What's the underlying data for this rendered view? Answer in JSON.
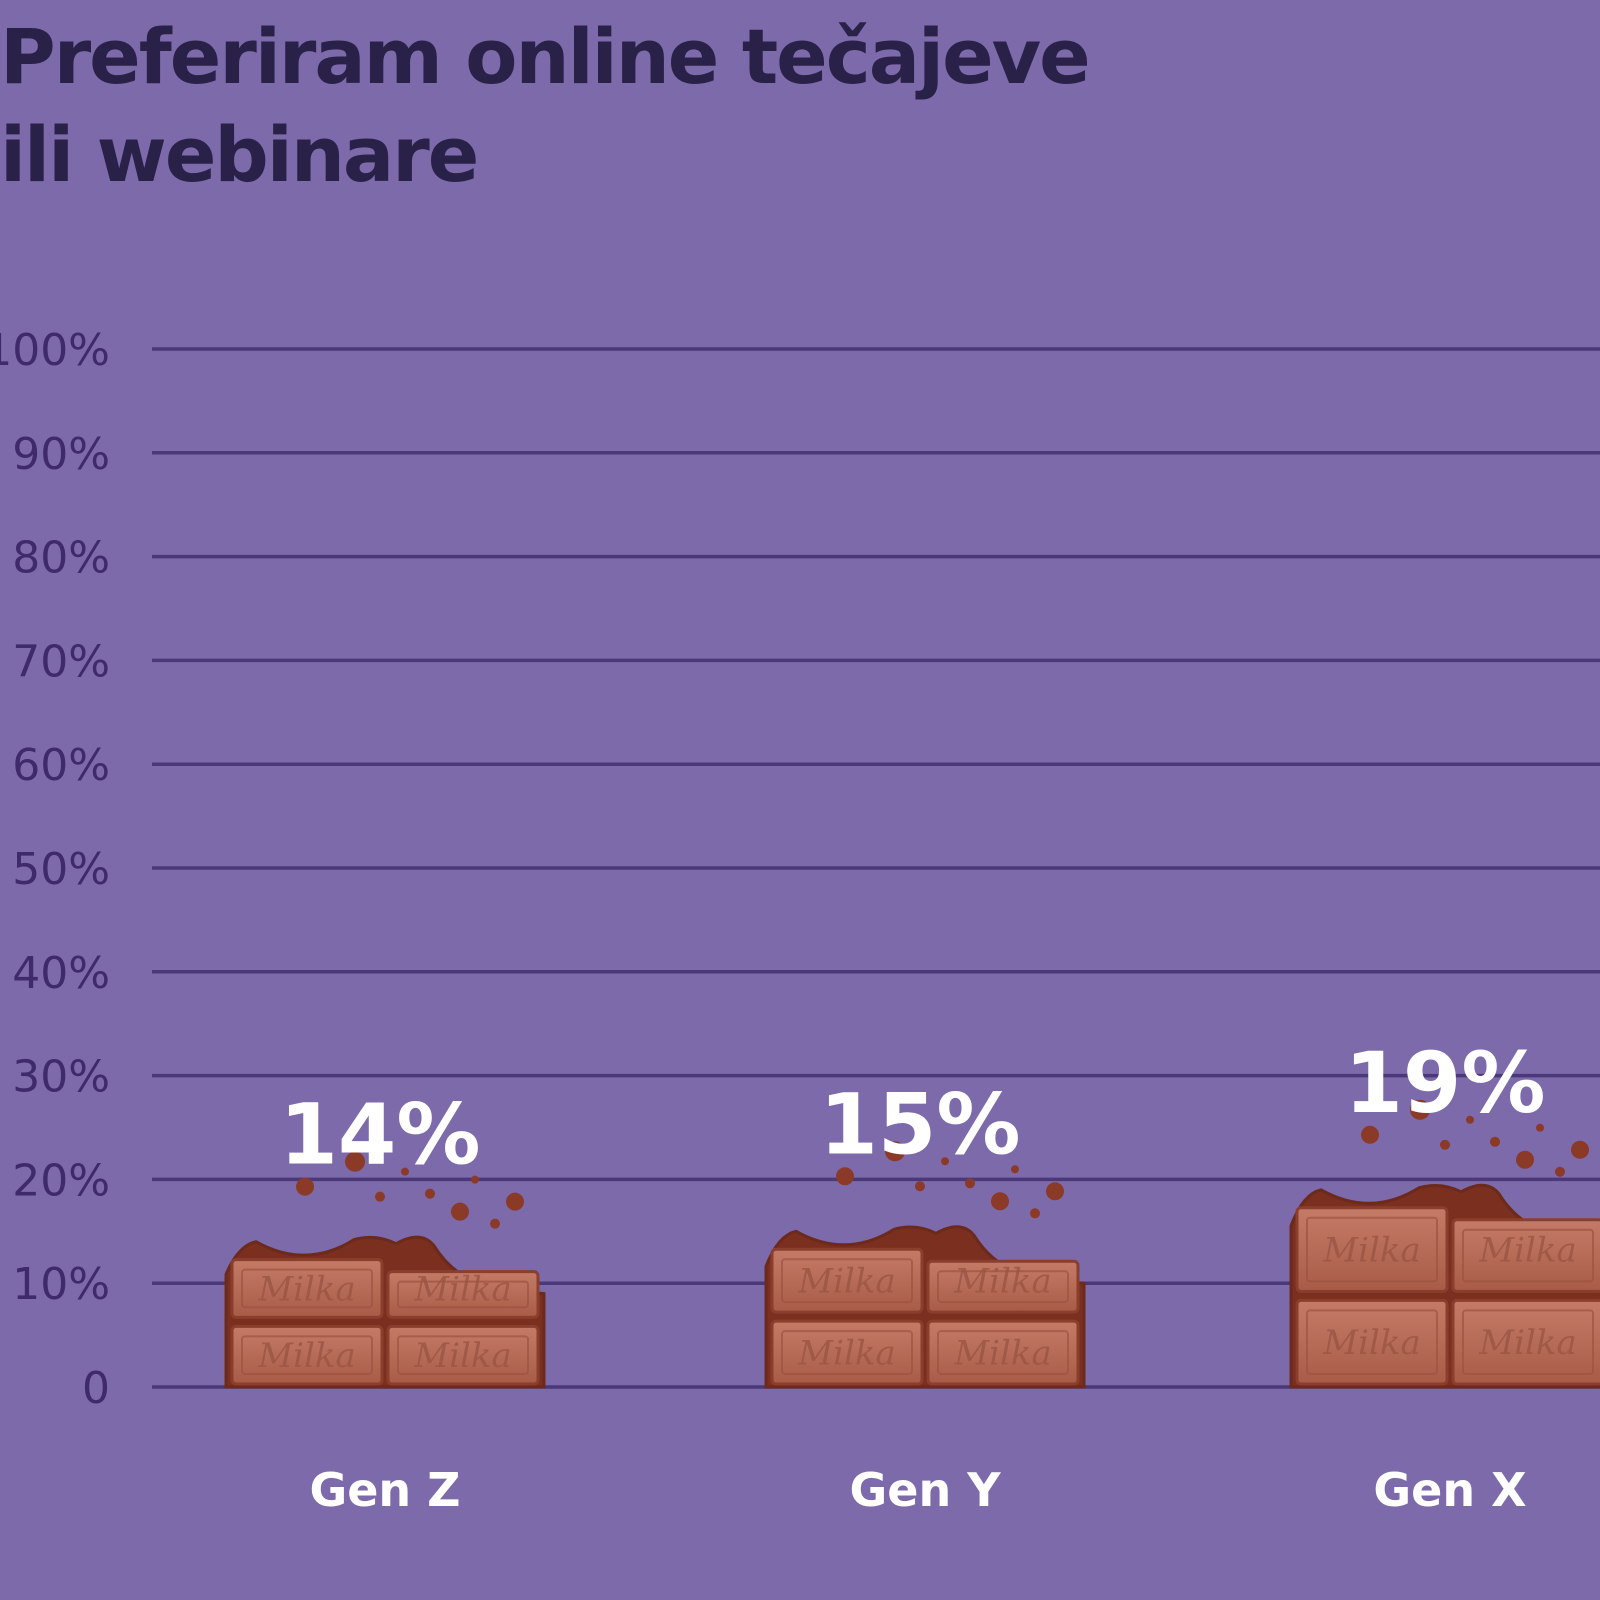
{
  "title_lines": [
    "Preferiram online tečajeve",
    "ili webinare"
  ],
  "chart_data": {
    "type": "bar",
    "title": "Preferiram online tečajeve ili webinare",
    "categories": [
      "Gen Z",
      "Gen Y",
      "Gen X"
    ],
    "values": [
      14,
      15,
      19
    ],
    "value_labels": [
      "14%",
      "15%",
      "19%"
    ],
    "ylim": [
      0,
      100
    ],
    "yticks": [
      0,
      10,
      20,
      30,
      40,
      50,
      60,
      70,
      80,
      90,
      100
    ],
    "ytick_labels": [
      "0",
      "10%",
      "20%",
      "30%",
      "40%",
      "50%",
      "60%",
      "70%",
      "80%",
      "90%",
      "100%"
    ],
    "xlabel": "",
    "ylabel": "",
    "grid": true,
    "bar_style": "chocolate bar pieces",
    "bar_brand_text": "Milka"
  },
  "colors": {
    "background": "#7d6aab",
    "gridline": "#4a3878",
    "title": "#2a2148",
    "tick_label": "#3f2a6b",
    "value_label": "#ffffff",
    "category_label": "#ffffff",
    "chocolate": "#b46a56",
    "chocolate_dark": "#6b2a1c"
  }
}
